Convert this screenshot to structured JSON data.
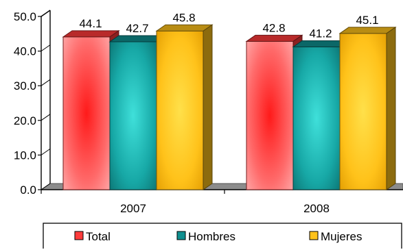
{
  "chart_data": {
    "type": "bar",
    "categories": [
      "2007",
      "2008"
    ],
    "series": [
      {
        "name": "Total",
        "values": [
          44.1,
          42.8
        ],
        "color": "#ff3b3b"
      },
      {
        "name": "Hombres",
        "values": [
          42.7,
          41.2
        ],
        "color": "#0f8f8f"
      },
      {
        "name": "Mujeres",
        "values": [
          45.8,
          45.1
        ],
        "color": "#ffc21a"
      }
    ],
    "value_labels": [
      [
        "44.1",
        "42.8"
      ],
      [
        "42.7",
        "41.2"
      ],
      [
        "45.8",
        "45.1"
      ]
    ],
    "y_ticks": [
      "0.0",
      "10.0",
      "20.0",
      "30.0",
      "40.0",
      "50.0"
    ],
    "ylim": [
      0,
      50
    ],
    "title": "",
    "xlabel": "",
    "ylabel": "",
    "legend_position": "bottom",
    "three_d": true,
    "grid": false
  }
}
